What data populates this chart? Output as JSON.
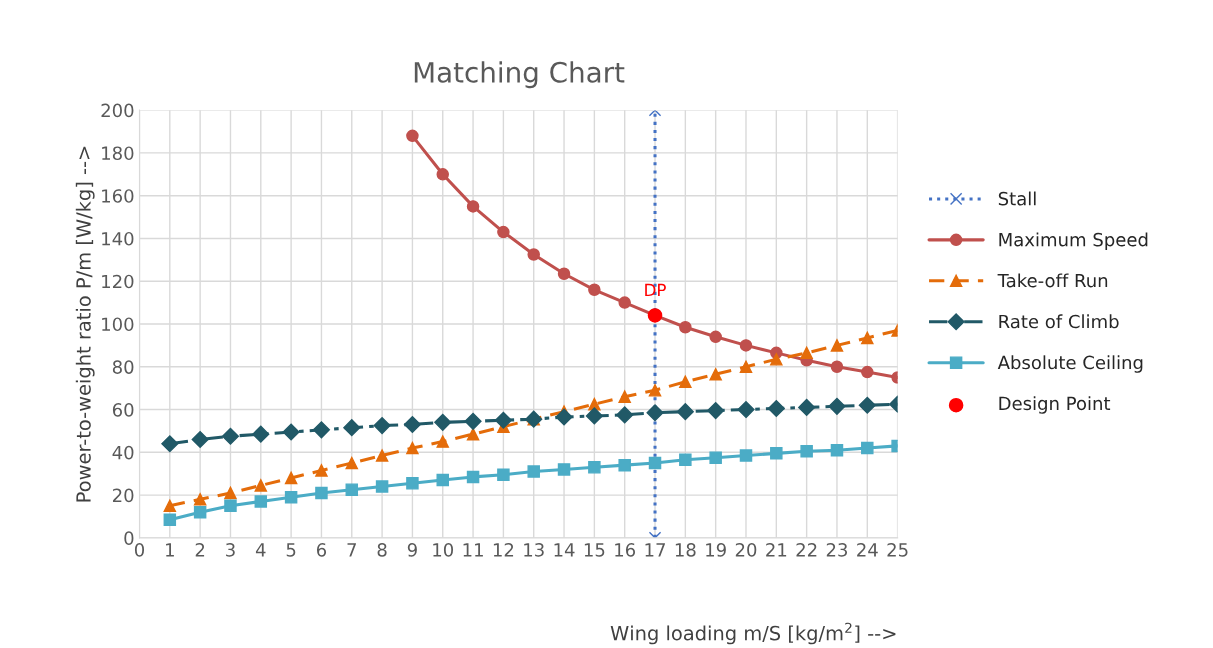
{
  "chart_data": {
    "type": "line",
    "title": "Matching Chart",
    "xlabel": "Wing loading m/S [kg/m$^{2}$] -->",
    "ylabel": "Power-to-weight ratio P/m [W/kg] -->",
    "xlim": [
      0,
      25
    ],
    "xticks": [
      0,
      1,
      2,
      3,
      4,
      5,
      6,
      7,
      8,
      9,
      10,
      11,
      12,
      13,
      14,
      15,
      16,
      17,
      18,
      19,
      20,
      21,
      22,
      23,
      24,
      25
    ],
    "ylim": [
      0,
      200
    ],
    "yticks": [
      0,
      20,
      40,
      60,
      80,
      100,
      120,
      140,
      160,
      180,
      200
    ],
    "grid": true,
    "legend": "right",
    "annotations": [
      {
        "text": "DP",
        "x": 17,
        "y": 104
      }
    ],
    "series": [
      {
        "name": "Stall",
        "color": "#4472c4",
        "marker": "cross",
        "line_style": "dotted",
        "x": [
          17,
          17
        ],
        "values": [
          0,
          200
        ]
      },
      {
        "name": "Maximum Speed",
        "color": "#c0504d",
        "marker": "circle",
        "line_style": "solid",
        "x": [
          9,
          10,
          11,
          12,
          13,
          14,
          15,
          16,
          17,
          18,
          19,
          20,
          21,
          22,
          23,
          24,
          25
        ],
        "values": [
          188,
          170,
          155,
          143,
          132.5,
          123.5,
          116,
          110,
          104,
          98.5,
          94,
          90,
          86.5,
          83,
          80,
          77.5,
          75
        ]
      },
      {
        "name": "Take-off Run",
        "color": "#e46c0a",
        "marker": "triangle",
        "line_style": "dashed",
        "x": [
          1,
          2,
          3,
          4,
          5,
          6,
          7,
          8,
          9,
          10,
          11,
          12,
          13,
          14,
          15,
          16,
          17,
          18,
          19,
          20,
          21,
          22,
          23,
          24,
          25
        ],
        "values": [
          15,
          18,
          21,
          24.5,
          28,
          31.5,
          35,
          38.5,
          42,
          45,
          48.5,
          52,
          55.5,
          59,
          62.5,
          66,
          69,
          73,
          76.5,
          80,
          83.5,
          86.5,
          90,
          93.5,
          97
        ]
      },
      {
        "name": "Rate of Climb",
        "color": "#215967",
        "marker": "diamond",
        "line_style": "dashdot",
        "x": [
          1,
          2,
          3,
          4,
          5,
          6,
          7,
          8,
          9,
          10,
          11,
          12,
          13,
          14,
          15,
          16,
          17,
          18,
          19,
          20,
          21,
          22,
          23,
          24,
          25
        ],
        "values": [
          44,
          46,
          47.5,
          48.5,
          49.5,
          50.5,
          51.5,
          52.5,
          53,
          54,
          54.5,
          55,
          55.5,
          56.5,
          57,
          57.5,
          58.5,
          59,
          59.5,
          60,
          60.5,
          61,
          61.5,
          62,
          62.5
        ]
      },
      {
        "name": "Absolute Ceiling",
        "color": "#4bacc6",
        "marker": "square",
        "line_style": "solid",
        "x": [
          1,
          2,
          3,
          4,
          5,
          6,
          7,
          8,
          9,
          10,
          11,
          12,
          13,
          14,
          15,
          16,
          17,
          18,
          19,
          20,
          21,
          22,
          23,
          24,
          25
        ],
        "values": [
          8.5,
          12,
          15,
          17,
          19,
          21,
          22.5,
          24,
          25.5,
          27,
          28.5,
          29.5,
          31,
          32,
          33,
          34,
          35,
          36.5,
          37.5,
          38.5,
          39.5,
          40.5,
          41,
          42,
          43
        ]
      },
      {
        "name": "Design Point",
        "type": "scatter",
        "color": "#ff0000",
        "marker": "circle",
        "x": [
          17
        ],
        "values": [
          104
        ]
      }
    ]
  }
}
